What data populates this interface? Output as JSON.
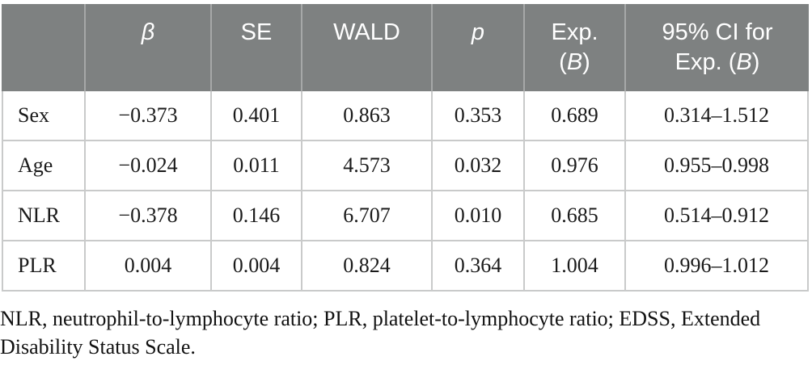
{
  "table": {
    "header": {
      "row_label": "",
      "beta": "β",
      "se": "SE",
      "wald": "WALD",
      "p": "p",
      "exp_b": {
        "line1": "Exp.",
        "open_paren": "(",
        "b": "B",
        "close_paren": ")"
      },
      "ci": {
        "line1": "95% CI for",
        "line2_prefix": "Exp. (",
        "b": "B",
        "line2_suffix": ")"
      }
    },
    "rows": [
      {
        "label": "Sex",
        "beta": "−0.373",
        "se": "0.401",
        "wald": "0.863",
        "p": "0.353",
        "exp_b": "0.689",
        "ci": "0.314–1.512"
      },
      {
        "label": "Age",
        "beta": "−0.024",
        "se": "0.011",
        "wald": "4.573",
        "p": "0.032",
        "exp_b": "0.976",
        "ci": "0.955–0.998"
      },
      {
        "label": "NLR",
        "beta": "−0.378",
        "se": "0.146",
        "wald": "6.707",
        "p": "0.010",
        "exp_b": "0.685",
        "ci": "0.514–0.912"
      },
      {
        "label": "PLR",
        "beta": "0.004",
        "se": "0.004",
        "wald": "0.824",
        "p": "0.364",
        "exp_b": "1.004",
        "ci": "0.996–1.012"
      }
    ]
  },
  "footnote": {
    "line1": "NLR, neutrophil-to-lymphocyte ratio; PLR, platelet-to-lymphocyte ratio; EDSS, Extended",
    "line2": "Disability Status Scale."
  },
  "colors": {
    "header_bg": "#7e8181",
    "header_text": "#ffffff",
    "header_divider": "#a6a8a8",
    "body_border": "#c9caca",
    "body_text": "#1a1a1a"
  }
}
